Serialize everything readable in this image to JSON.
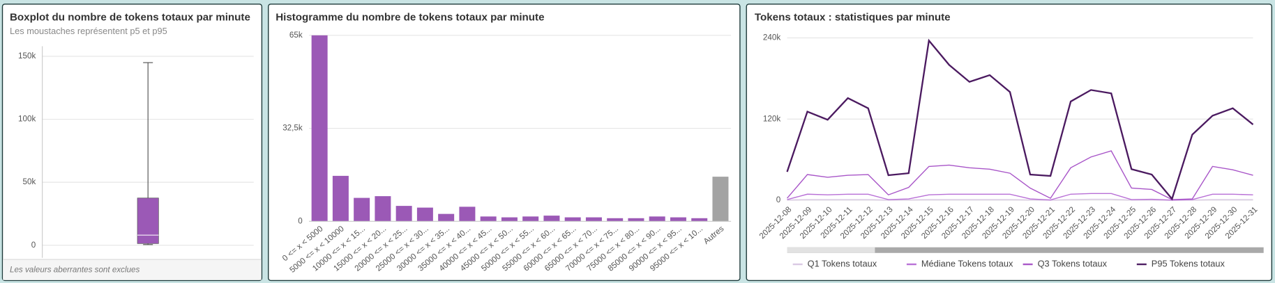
{
  "chart_data": [
    {
      "type": "box",
      "title": "Boxplot du nombre de tokens totaux par minute",
      "subtitle": "Les moustaches représentent p5 et p95",
      "footnote": "Les valeurs aberrantes sont exclues",
      "box": {
        "p5": 500,
        "q1": 1300,
        "median": 8000,
        "q3": 37500,
        "p95": 145000
      },
      "color": "#9b59b6",
      "ylim": [
        -10000,
        158000
      ],
      "yticks": [
        0,
        {
          "value": 50000,
          "label": "50k"
        },
        {
          "value": 100000,
          "label": "100k"
        },
        {
          "value": 150000,
          "label": "150k"
        }
      ],
      "grid": true
    },
    {
      "type": "bar",
      "title": "Histogramme du nombre de tokens totaux par minute",
      "categories": [
        "0 <= x < 5000",
        "5000 <= x < 10000",
        "10000 <= x < 15...",
        "15000 <= x < 20...",
        "20000 <= x < 25...",
        "25000 <= x < 30...",
        "30000 <= x < 35...",
        "35000 <= x < 40...",
        "40000 <= x < 45...",
        "45000 <= x < 50...",
        "50000 <= x < 55...",
        "55000 <= x < 60...",
        "60000 <= x < 65...",
        "65000 <= x < 70...",
        "70000 <= x < 75...",
        "75000 <= x < 80...",
        "85000 <= x < 90...",
        "90000 <= x < 95...",
        "95000 <= x < 10...",
        "Autres"
      ],
      "values": [
        65000,
        15900,
        8200,
        8800,
        5400,
        4800,
        2600,
        5100,
        1700,
        1400,
        1700,
        2000,
        1400,
        1400,
        1100,
        1100,
        1700,
        1400,
        1100,
        15600
      ],
      "colors": [
        "#9b59b6",
        "#9b59b6",
        "#9b59b6",
        "#9b59b6",
        "#9b59b6",
        "#9b59b6",
        "#9b59b6",
        "#9b59b6",
        "#9b59b6",
        "#9b59b6",
        "#9b59b6",
        "#9b59b6",
        "#9b59b6",
        "#9b59b6",
        "#9b59b6",
        "#9b59b6",
        "#9b59b6",
        "#9b59b6",
        "#9b59b6",
        "#a3a3a3"
      ],
      "ylim": [
        0,
        66000
      ],
      "yticks": [
        0,
        {
          "value": 32500,
          "label": "32,5k"
        },
        {
          "value": 65000,
          "label": "65k"
        }
      ],
      "grid": true
    },
    {
      "type": "line",
      "title": "Tokens totaux : statistiques par minute",
      "categories": [
        "2025-12-08",
        "2025-12-09",
        "2025-12-10",
        "2025-12-11",
        "2025-12-12",
        "2025-12-13",
        "2025-12-14",
        "2025-12-15",
        "2025-12-16",
        "2025-12-17",
        "2025-12-18",
        "2025-12-19",
        "2025-12-20",
        "2025-12-21",
        "2025-12-22",
        "2025-12-23",
        "2025-12-24",
        "2025-12-25",
        "2025-12-26",
        "2025-12-27",
        "2025-12-28",
        "2025-12-29",
        "2025-12-30",
        "2025-12-31"
      ],
      "series": [
        {
          "name": "Q1 Tokens totaux",
          "color": "#d9c8e3",
          "values": [
            300,
            1000,
            1000,
            1000,
            1000,
            200,
            500,
            1000,
            1000,
            1000,
            1000,
            1000,
            500,
            100,
            1000,
            1500,
            1500,
            300,
            300,
            100,
            200,
            1000,
            1000,
            1000
          ]
        },
        {
          "name": "Médiane Tokens totaux",
          "color": "#b86fd6",
          "values": [
            1000,
            9000,
            8000,
            9000,
            9000,
            1000,
            2000,
            8000,
            9000,
            9000,
            9000,
            9000,
            2000,
            500,
            9000,
            10000,
            10000,
            1000,
            1500,
            200,
            1000,
            9000,
            9000,
            8000
          ]
        },
        {
          "name": "Q3 Tokens totaux",
          "color": "#a855c8",
          "values": [
            3000,
            38000,
            34000,
            37000,
            38000,
            8000,
            19000,
            50000,
            52000,
            48000,
            46000,
            40000,
            18000,
            3000,
            48000,
            64000,
            73000,
            18000,
            16000,
            1000,
            2000,
            50000,
            45000,
            37000
          ]
        },
        {
          "name": "P95 Tokens totaux",
          "color": "#4b1a60",
          "values": [
            42000,
            131000,
            119000,
            151000,
            136000,
            37000,
            40000,
            236000,
            200000,
            175000,
            185000,
            160000,
            38000,
            36000,
            146000,
            163000,
            158000,
            46000,
            38000,
            2000,
            97000,
            125000,
            136000,
            112000
          ]
        }
      ],
      "ylim": [
        0,
        248000
      ],
      "yticks": [
        0,
        {
          "value": 120000,
          "label": "120k"
        },
        {
          "value": 240000,
          "label": "240k"
        }
      ],
      "grid": true,
      "legend": "bottom"
    }
  ]
}
